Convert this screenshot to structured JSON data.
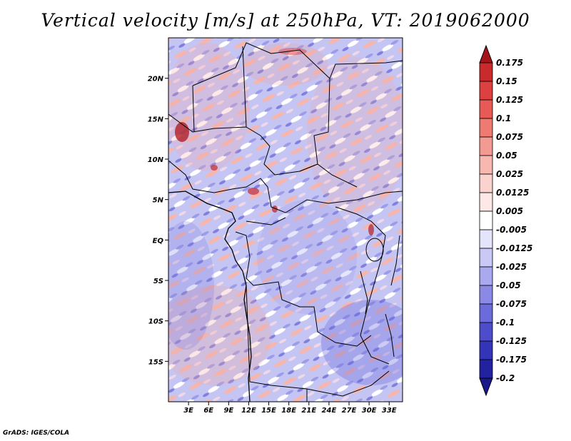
{
  "title": "Vertical velocity [m/s] at 250hPa, VT: 2019062000",
  "credit": "GrADS: IGES/COLA",
  "map": {
    "lon_range": [
      0,
      35
    ],
    "lat_range": [
      -20,
      25
    ],
    "lat_ticks": [
      {
        "value": 20,
        "label": "20N"
      },
      {
        "value": 15,
        "label": "15N"
      },
      {
        "value": 10,
        "label": "10N"
      },
      {
        "value": 5,
        "label": "5N"
      },
      {
        "value": 0,
        "label": "EQ"
      },
      {
        "value": -5,
        "label": "5S"
      },
      {
        "value": -10,
        "label": "10S"
      },
      {
        "value": -15,
        "label": "15S"
      }
    ],
    "lon_ticks": [
      {
        "value": 3,
        "label": "3E"
      },
      {
        "value": 6,
        "label": "6E"
      },
      {
        "value": 9,
        "label": "9E"
      },
      {
        "value": 12,
        "label": "12E"
      },
      {
        "value": 15,
        "label": "15E"
      },
      {
        "value": 18,
        "label": "18E"
      },
      {
        "value": 21,
        "label": "21E"
      },
      {
        "value": 24,
        "label": "24E"
      },
      {
        "value": 27,
        "label": "27E"
      },
      {
        "value": 30,
        "label": "30E"
      },
      {
        "value": 33,
        "label": "33E"
      }
    ]
  },
  "colorbar": {
    "levels": [
      {
        "label": "0.175",
        "color": "#b01e24"
      },
      {
        "label": "0.15",
        "color": "#c92a2c"
      },
      {
        "label": "0.125",
        "color": "#dc4040"
      },
      {
        "label": "0.1",
        "color": "#e85a55"
      },
      {
        "label": "0.075",
        "color": "#ee7a72"
      },
      {
        "label": "0.05",
        "color": "#f39a92"
      },
      {
        "label": "0.025",
        "color": "#f7b8b0"
      },
      {
        "label": "0.0125",
        "color": "#fad3ce"
      },
      {
        "label": "0.005",
        "color": "#fde8e5"
      },
      {
        "label": "-0.005",
        "color": "#ffffff"
      },
      {
        "label": "-0.0125",
        "color": "#e4e4fb"
      },
      {
        "label": "-0.025",
        "color": "#c9c9f6"
      },
      {
        "label": "-0.05",
        "color": "#a9a9ef"
      },
      {
        "label": "-0.075",
        "color": "#8a8ae6"
      },
      {
        "label": "-0.1",
        "color": "#6b6bdc"
      },
      {
        "label": "-0.125",
        "color": "#4d4dcc"
      },
      {
        "label": "-0.175",
        "color": "#3434b8"
      },
      {
        "label": "-0.2",
        "color": "#2222a0"
      }
    ],
    "top_color": "#a31519",
    "bottom_color": "#19198c"
  }
}
